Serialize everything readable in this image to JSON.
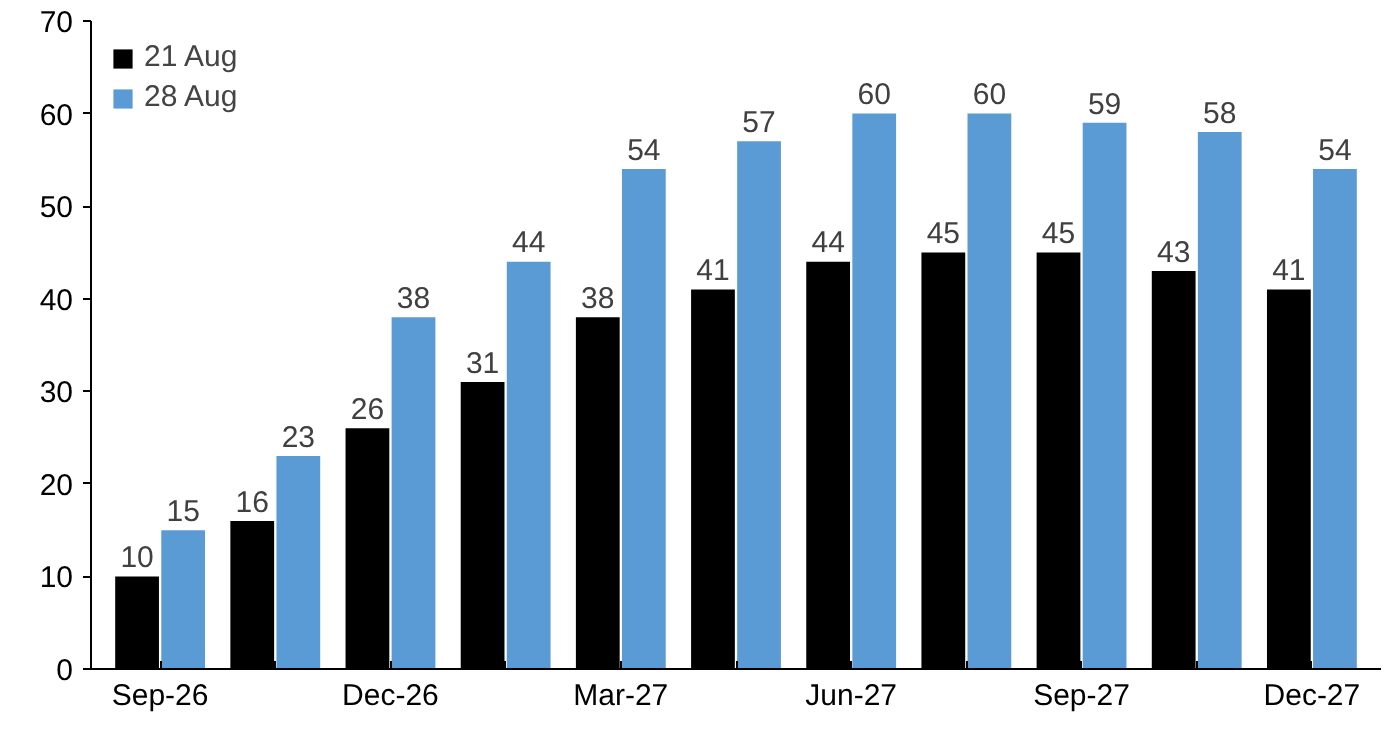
{
  "chart_data": {
    "type": "bar",
    "categories": [
      "Sep-26",
      null,
      "Dec-26",
      null,
      "Mar-27",
      null,
      "Jun-27",
      null,
      "Sep-27",
      null,
      "Dec-27"
    ],
    "series": [
      {
        "name": "21 Aug",
        "color": "#000000",
        "values": [
          10,
          16,
          26,
          31,
          38,
          41,
          44,
          45,
          45,
          43,
          41
        ]
      },
      {
        "name": "28 Aug",
        "color": "#5b9bd5",
        "values": [
          15,
          23,
          38,
          44,
          54,
          57,
          60,
          60,
          59,
          58,
          54
        ]
      }
    ],
    "ylim": [
      0,
      70
    ],
    "yticks": [
      0,
      10,
      20,
      30,
      40,
      50,
      60,
      70
    ],
    "grid": false,
    "legend": "top left",
    "data_labels": true
  }
}
